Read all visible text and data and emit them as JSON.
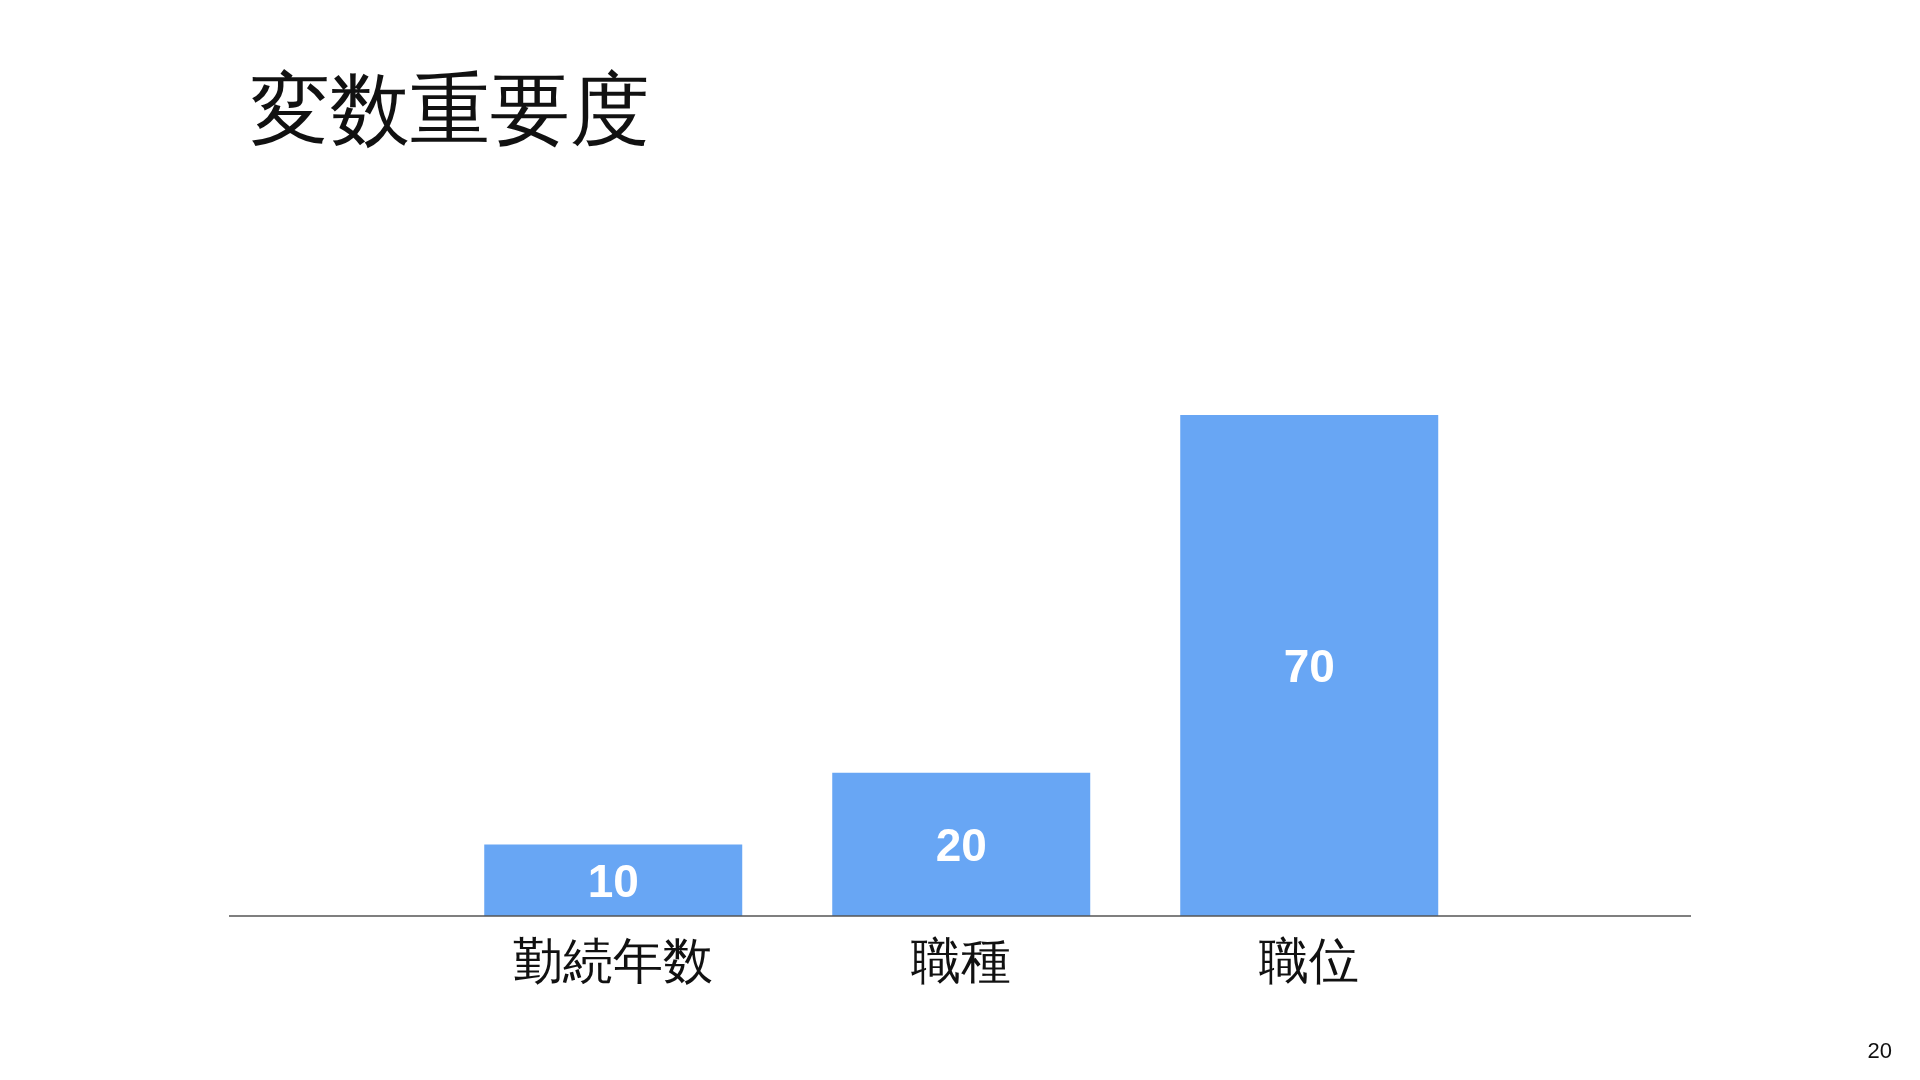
{
  "chart_data": {
    "type": "bar",
    "title": "変数重要度",
    "categories": [
      "勤続年数",
      "職種",
      "職位"
    ],
    "values": [
      10,
      20,
      70
    ],
    "color": "#68a6f4",
    "data_labels": true,
    "grid": false,
    "annotations": [
      "20"
    ]
  }
}
